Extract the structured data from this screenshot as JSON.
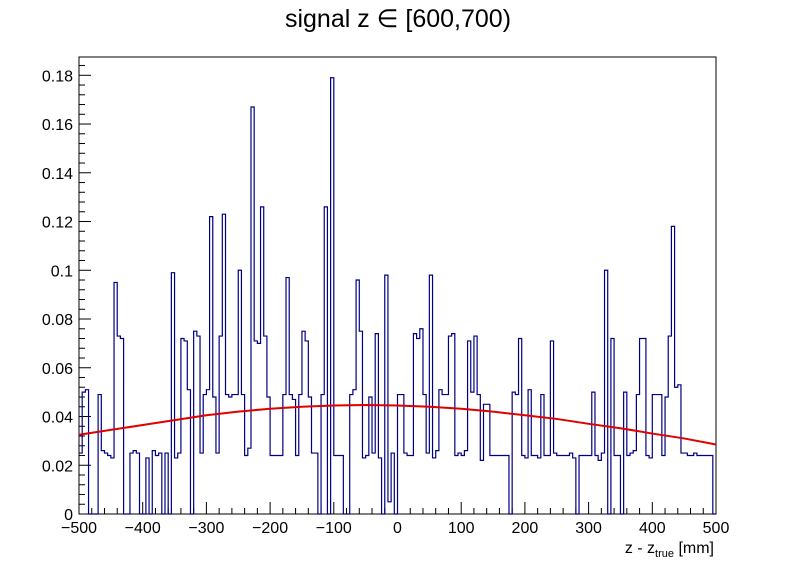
{
  "chart_data": {
    "type": "histogram",
    "title": "signal z ∈ [600,700)",
    "xlabel": "z - z",
    "xlabel_sub": "true",
    "xlabel_unit": " [mm]",
    "xlim": [
      -500,
      500
    ],
    "ylim": [
      0,
      0.1875
    ],
    "x_ticks": [
      "-500",
      "-400",
      "-300",
      "-200",
      "-100",
      "0",
      "100",
      "200",
      "300",
      "400",
      "500"
    ],
    "x_tick_values": [
      -500,
      -400,
      -300,
      -200,
      -100,
      0,
      100,
      200,
      300,
      400,
      500
    ],
    "y_ticks": [
      "0",
      "0.02",
      "0.04",
      "0.06",
      "0.08",
      "0.1",
      "0.12",
      "0.14",
      "0.16",
      "0.18"
    ],
    "y_tick_values": [
      0,
      0.02,
      0.04,
      0.06,
      0.08,
      0.1,
      0.12,
      0.14,
      0.16,
      0.18
    ],
    "bin_edges_start": -500,
    "bin_width": 5,
    "histogram_color": "#000080",
    "fit_color": "#e00000",
    "histogram_values": [
      0.025,
      0.05,
      0.051,
      0,
      0,
      0,
      0.049,
      0.026,
      0.025,
      0.024,
      0.023,
      0.095,
      0.073,
      0.072,
      0,
      0,
      0.025,
      0.026,
      0.025,
      0,
      0,
      0.023,
      0,
      0.026,
      0.024,
      0.025,
      0,
      0.025,
      0,
      0.099,
      0.023,
      0.025,
      0.072,
      0.071,
      0.051,
      0,
      0.075,
      0.073,
      0.025,
      0.049,
      0.051,
      0.122,
      0.048,
      0.025,
      0.073,
      0.123,
      0.049,
      0.048,
      0.049,
      0.049,
      0.1,
      0.049,
      0.024,
      0.027,
      0.167,
      0.071,
      0.07,
      0.126,
      0.073,
      0.048,
      0.024,
      0.024,
      0.024,
      0.024,
      0.049,
      0.097,
      0.049,
      0.047,
      0.024,
      0.049,
      0.075,
      0.071,
      0.048,
      0.025,
      0.025,
      0,
      0.049,
      0.126,
      0,
      0.179,
      0.024,
      0.024,
      0.024,
      0,
      0,
      0.049,
      0.051,
      0.096,
      0.075,
      0.023,
      0.024,
      0.048,
      0.025,
      0.074,
      0.023,
      0,
      0.098,
      0.005,
      0.025,
      0,
      0.049,
      0.049,
      0.025,
      0.024,
      0.024,
      0.074,
      0.072,
      0.076,
      0.049,
      0.025,
      0.098,
      0.023,
      0.026,
      0.051,
      0.049,
      0.049,
      0.073,
      0.074,
      0.024,
      0.025,
      0.024,
      0.026,
      0.071,
      0.05,
      0.073,
      0.049,
      0.022,
      0.045,
      0.045,
      0.024,
      0.024,
      0.024,
      0.024,
      0.024,
      0.024,
      0,
      0.05,
      0.049,
      0.072,
      0.024,
      0.023,
      0.051,
      0.024,
      0.024,
      0.023,
      0.049,
      0.024,
      0.024,
      0.071,
      0.025,
      0.024,
      0.024,
      0.024,
      0.024,
      0.025,
      0.023,
      0,
      0.024,
      0.024,
      0.024,
      0.024,
      0.05,
      0.024,
      0.022,
      0.025,
      0.1,
      0,
      0.072,
      0.024,
      0.024,
      0,
      0.05,
      0.024,
      0.025,
      0.026,
      0.049,
      0.072,
      0.072,
      0.024,
      0.023,
      0.049,
      0.049,
      0.049,
      0.024,
      0.048,
      0.073,
      0.118,
      0.052,
      0.053,
      0.025,
      0.025,
      0.024,
      0.024,
      0.025,
      0.024,
      0.024,
      0.024,
      0.024,
      0.024,
      0
    ],
    "fit_function": "gaussian",
    "fit_points": {
      "x": [
        -500,
        -450,
        -400,
        -350,
        -300,
        -250,
        -200,
        -150,
        -100,
        -50,
        0,
        50,
        100,
        150,
        200,
        250,
        300,
        350,
        400,
        450,
        500
      ],
      "y": [
        0.0325,
        0.0345,
        0.0365,
        0.0385,
        0.0405,
        0.042,
        0.0432,
        0.044,
        0.0445,
        0.0447,
        0.0445,
        0.044,
        0.0432,
        0.042,
        0.0405,
        0.039,
        0.037,
        0.0352,
        0.033,
        0.031,
        0.0285
      ]
    }
  }
}
